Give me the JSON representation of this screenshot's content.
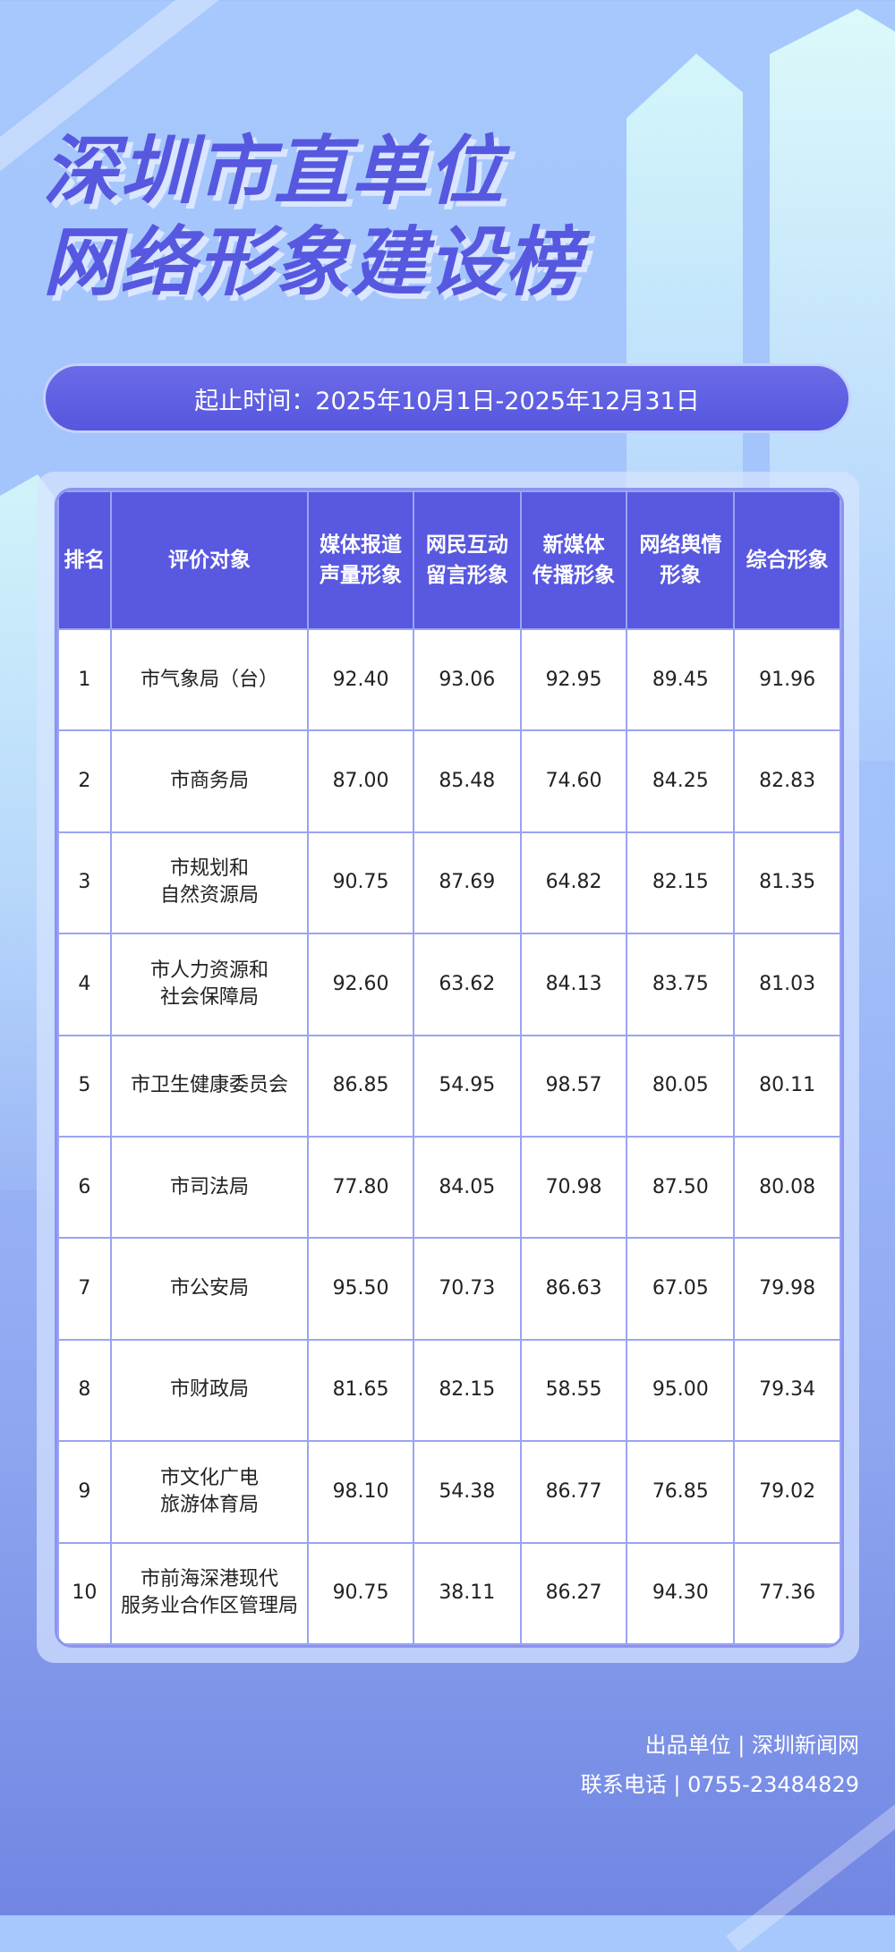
{
  "title": {
    "line1": "深圳市直单位",
    "line2": "网络形象建设榜"
  },
  "period": "起止时间：2025年10月1日-2025年12月31日",
  "table": {
    "headers": [
      "排名",
      "评价对象",
      "媒体报道\n声量形象",
      "网民互动\n留言形象",
      "新媒体\n传播形象",
      "网络舆情\n形象",
      "综合形象"
    ],
    "rows": [
      [
        "1",
        "市气象局（台）",
        "92.40",
        "93.06",
        "92.95",
        "89.45",
        "91.96"
      ],
      [
        "2",
        "市商务局",
        "87.00",
        "85.48",
        "74.60",
        "84.25",
        "82.83"
      ],
      [
        "3",
        "市规划和\n自然资源局",
        "90.75",
        "87.69",
        "64.82",
        "82.15",
        "81.35"
      ],
      [
        "4",
        "市人力资源和\n社会保障局",
        "92.60",
        "63.62",
        "84.13",
        "83.75",
        "81.03"
      ],
      [
        "5",
        "市卫生健康委员会",
        "86.85",
        "54.95",
        "98.57",
        "80.05",
        "80.11"
      ],
      [
        "6",
        "市司法局",
        "77.80",
        "84.05",
        "70.98",
        "87.50",
        "80.08"
      ],
      [
        "7",
        "市公安局",
        "95.50",
        "70.73",
        "86.63",
        "67.05",
        "79.98"
      ],
      [
        "8",
        "市财政局",
        "81.65",
        "82.15",
        "58.55",
        "95.00",
        "79.34"
      ],
      [
        "9",
        "市文化广电\n旅游体育局",
        "98.10",
        "54.38",
        "86.77",
        "76.85",
        "79.02"
      ],
      [
        "10",
        "市前海深港现代\n服务业合作区管理局",
        "90.75",
        "38.11",
        "86.27",
        "94.30",
        "77.36"
      ]
    ]
  },
  "footer": {
    "producer": "出品单位 | 深圳新闻网",
    "contact": "联系电话 | 0755-23484829"
  },
  "colors": {
    "accent": "#5858e0",
    "border": "#9aa4f2"
  }
}
